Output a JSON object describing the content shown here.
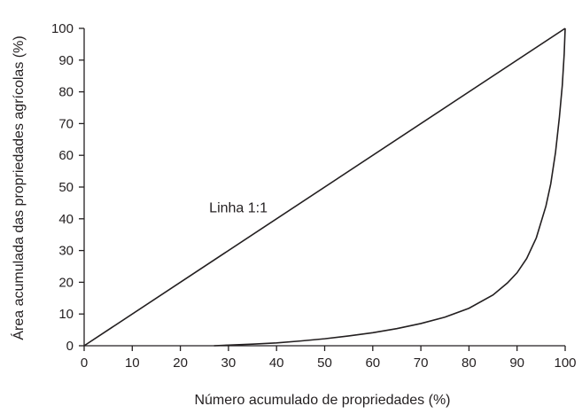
{
  "chart_data": {
    "type": "line",
    "xlabel": "Número acumulado de propriedades (%)",
    "ylabel": "Área acumulada das propriedades agrícolas (%)",
    "xlim": [
      0,
      100
    ],
    "ylim": [
      0,
      100
    ],
    "x_ticks": [
      "0",
      "10",
      "20",
      "30",
      "40",
      "50",
      "60",
      "70",
      "80",
      "90",
      "100"
    ],
    "y_ticks": [
      "0",
      "10",
      "20",
      "30",
      "40",
      "50",
      "60",
      "70",
      "80",
      "90",
      "100"
    ],
    "grid": false,
    "annotations": [
      {
        "text": "Linha 1:1",
        "x": 26,
        "y": 42
      }
    ],
    "series": [
      {
        "x": [
          0,
          100
        ],
        "y": [
          0,
          100
        ]
      },
      {
        "x": [
          27,
          30,
          35,
          40,
          45,
          50,
          55,
          60,
          65,
          70,
          75,
          80,
          85,
          88,
          90,
          92,
          94,
          96,
          97,
          98,
          98.8,
          99.4,
          99.8,
          100
        ],
        "y": [
          0,
          0.2,
          0.5,
          0.9,
          1.5,
          2.2,
          3.1,
          4.1,
          5.4,
          7.0,
          9.0,
          11.8,
          16.0,
          19.8,
          23.0,
          27.5,
          34.0,
          44.0,
          51.0,
          61.0,
          72.0,
          82.0,
          92.0,
          100
        ]
      }
    ]
  }
}
